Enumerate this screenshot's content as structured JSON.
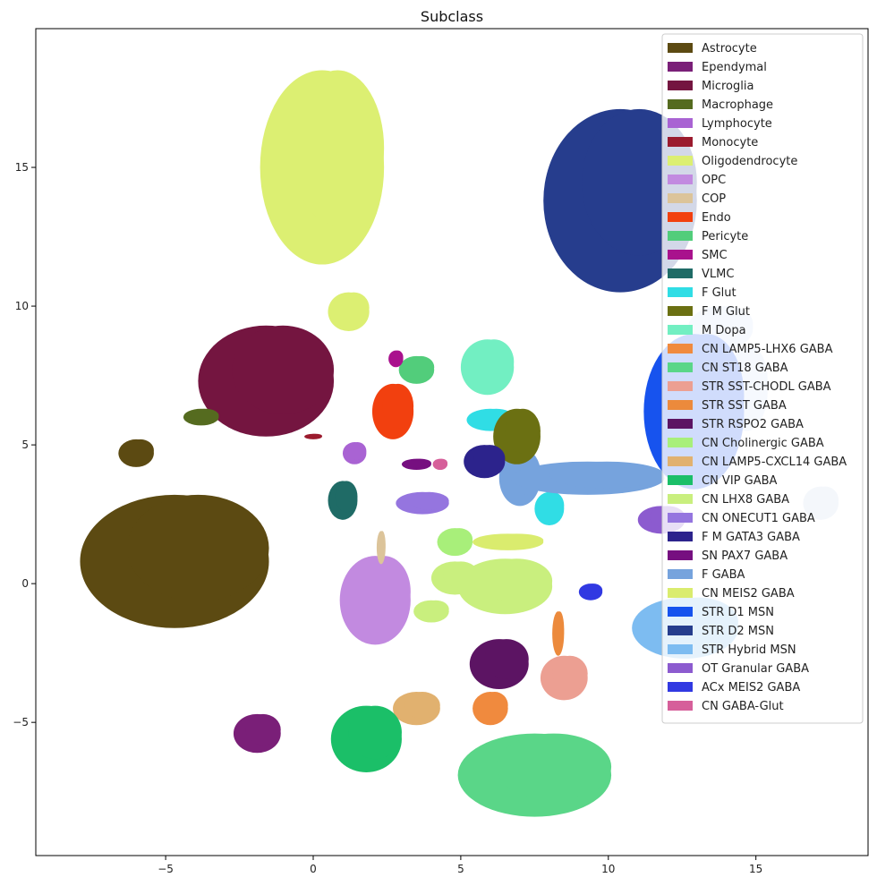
{
  "chart_data": {
    "type": "scatter",
    "title": "Subclass",
    "xlabel": "",
    "ylabel": "",
    "xlim": [
      -9.4,
      18.8
    ],
    "ylim": [
      -9.8,
      20.0
    ],
    "xticks": [
      -5,
      0,
      5,
      10,
      15
    ],
    "yticks": [
      -5,
      0,
      5,
      10,
      15
    ],
    "grid": false,
    "legend_position": "top-right",
    "series": [
      {
        "name": "Astrocyte",
        "color": "#5c4a12",
        "cluster": {
          "x": -4.7,
          "y": 0.8,
          "rx": 3.2,
          "ry": 2.4
        }
      },
      {
        "name": "Ependymal",
        "color": "#7a1f78",
        "cluster": {
          "x": -1.9,
          "y": -5.4,
          "rx": 0.8,
          "ry": 0.7
        }
      },
      {
        "name": "Microglia",
        "color": "#741540",
        "cluster": {
          "x": -1.6,
          "y": 7.3,
          "rx": 2.3,
          "ry": 2.0
        }
      },
      {
        "name": "Macrophage",
        "color": "#556b1f",
        "cluster": {
          "x": -3.8,
          "y": 6.0,
          "rx": 0.6,
          "ry": 0.3
        }
      },
      {
        "name": "Lymphocyte",
        "color": "#a963d3",
        "cluster": {
          "x": 1.4,
          "y": 4.7,
          "rx": 0.4,
          "ry": 0.4
        }
      },
      {
        "name": "Monocyte",
        "color": "#9b1b2e",
        "cluster": {
          "x": 0.0,
          "y": 5.3,
          "rx": 0.3,
          "ry": 0.1
        }
      },
      {
        "name": "Oligodendrocyte",
        "color": "#dcef72",
        "cluster": {
          "x": 0.3,
          "y": 15.0,
          "rx": 2.1,
          "ry": 3.5
        }
      },
      {
        "name": "OPC",
        "color": "#c28ae0",
        "cluster": {
          "x": 2.1,
          "y": -0.6,
          "rx": 1.2,
          "ry": 1.6
        }
      },
      {
        "name": "COP",
        "color": "#dcc49a",
        "cluster": {
          "x": 2.3,
          "y": 1.3,
          "rx": 0.15,
          "ry": 0.6
        }
      },
      {
        "name": "Endo",
        "color": "#f2400f",
        "cluster": {
          "x": 2.7,
          "y": 6.2,
          "rx": 0.7,
          "ry": 1.0
        }
      },
      {
        "name": "Pericyte",
        "color": "#52cd7b",
        "cluster": {
          "x": 3.5,
          "y": 7.7,
          "rx": 0.6,
          "ry": 0.5
        }
      },
      {
        "name": "SMC",
        "color": "#a9128d",
        "cluster": {
          "x": 2.8,
          "y": 8.1,
          "rx": 0.25,
          "ry": 0.3
        }
      },
      {
        "name": "VLMC",
        "color": "#1f6b66",
        "cluster": {
          "x": 1.0,
          "y": 3.0,
          "rx": 0.5,
          "ry": 0.7
        }
      },
      {
        "name": "F Glut",
        "color": "#30dde5",
        "cluster": {
          "x": 6.0,
          "y": 5.9,
          "rx": 0.8,
          "ry": 0.4
        }
      },
      {
        "name": "F M Glut",
        "color": "#6b7012",
        "cluster": {
          "x": 6.9,
          "y": 5.3,
          "rx": 0.8,
          "ry": 1.0
        }
      },
      {
        "name": "M Dopa",
        "color": "#72efc2",
        "cluster": {
          "x": 5.9,
          "y": 7.8,
          "rx": 0.9,
          "ry": 1.0
        }
      },
      {
        "name": "CN LAMP5-LHX6 GABA",
        "color": "#f08a3e",
        "cluster": {
          "x": 6.0,
          "y": -4.5,
          "rx": 0.6,
          "ry": 0.6
        }
      },
      {
        "name": "CN ST18 GABA",
        "color": "#5ad688",
        "cluster": {
          "x": 7.5,
          "y": -6.9,
          "rx": 2.6,
          "ry": 1.5
        }
      },
      {
        "name": "STR SST-CHODL GABA",
        "color": "#ec9f92",
        "cluster": {
          "x": 8.5,
          "y": -3.4,
          "rx": 0.8,
          "ry": 0.8
        }
      },
      {
        "name": "STR SST GABA",
        "color": "#ec8a3c",
        "cluster": {
          "x": 8.3,
          "y": -1.8,
          "rx": 0.2,
          "ry": 0.8
        }
      },
      {
        "name": "STR RSPO2 GABA",
        "color": "#5c1463",
        "cluster": {
          "x": 6.3,
          "y": -2.9,
          "rx": 1.0,
          "ry": 0.9
        }
      },
      {
        "name": "CN Cholinergic GABA",
        "color": "#a8ef7a",
        "cluster": {
          "x": 4.8,
          "y": 1.5,
          "rx": 0.6,
          "ry": 0.5
        }
      },
      {
        "name": "CN LAMP5-CXCL14 GABA",
        "color": "#e1b16f",
        "cluster": {
          "x": 3.5,
          "y": -4.5,
          "rx": 0.8,
          "ry": 0.6
        }
      },
      {
        "name": "CN VIP GABA",
        "color": "#1bbf68",
        "cluster": {
          "x": 1.8,
          "y": -5.6,
          "rx": 1.2,
          "ry": 1.2
        }
      },
      {
        "name": "CN LHX8 GABA",
        "color": "#c9ef7e",
        "cluster": {
          "x": 6.5,
          "y": -0.1,
          "rx": 1.6,
          "ry": 1.0
        }
      },
      {
        "name": "CN ONECUT1 GABA",
        "color": "#9575df",
        "cluster": {
          "x": 3.7,
          "y": 2.9,
          "rx": 0.9,
          "ry": 0.4
        }
      },
      {
        "name": "F M GATA3 GABA",
        "color": "#2c238c",
        "cluster": {
          "x": 5.8,
          "y": 4.4,
          "rx": 0.7,
          "ry": 0.6
        }
      },
      {
        "name": "SN PAX7 GABA",
        "color": "#760f80",
        "cluster": {
          "x": 3.5,
          "y": 4.3,
          "rx": 0.5,
          "ry": 0.2
        }
      },
      {
        "name": "F GABA",
        "color": "#76a3dd",
        "cluster": {
          "x": 9.3,
          "y": 3.8,
          "rx": 2.6,
          "ry": 0.6
        }
      },
      {
        "name": "CN MEIS2 GABA",
        "color": "#daec6e",
        "cluster": {
          "x": 6.6,
          "y": 1.5,
          "rx": 1.2,
          "ry": 0.3
        }
      },
      {
        "name": "STR D1 MSN",
        "color": "#1753ee",
        "cluster": {
          "x": 12.9,
          "y": 6.2,
          "rx": 1.7,
          "ry": 2.8
        }
      },
      {
        "name": "STR D2 MSN",
        "color": "#263d8d",
        "cluster": {
          "x": 10.4,
          "y": 13.8,
          "rx": 2.6,
          "ry": 3.3
        }
      },
      {
        "name": "STR Hybrid MSN",
        "color": "#7dbcf1",
        "cluster": {
          "x": 12.6,
          "y": -1.6,
          "rx": 1.8,
          "ry": 1.1
        }
      },
      {
        "name": "OT Granular GABA",
        "color": "#8c5bcf",
        "cluster": {
          "x": 11.8,
          "y": 2.3,
          "rx": 0.8,
          "ry": 0.5
        }
      },
      {
        "name": "ACx MEIS2 GABA",
        "color": "#3139e2",
        "cluster": {
          "x": 9.4,
          "y": -0.3,
          "rx": 0.4,
          "ry": 0.3
        }
      },
      {
        "name": "CN GABA-Glut",
        "color": "#d65f9a",
        "cluster": {
          "x": 4.3,
          "y": 4.3,
          "rx": 0.25,
          "ry": 0.2
        }
      }
    ],
    "extra_clusters": [
      {
        "x": 17.2,
        "y": 2.9,
        "rx": 0.6,
        "ry": 0.6,
        "color": "#c8d4ea"
      },
      {
        "x": 13.8,
        "y": 9.2,
        "rx": 1.1,
        "ry": 0.8,
        "color": "#cfe0fb"
      },
      {
        "x": 14.7,
        "y": 7.0,
        "rx": 0.7,
        "ry": 1.5,
        "color": "#cfe0fb"
      },
      {
        "x": 7.0,
        "y": 3.8,
        "rx": 0.7,
        "ry": 1.0,
        "color": "#76a3dd"
      },
      {
        "x": 8.0,
        "y": 2.7,
        "rx": 0.5,
        "ry": 0.6,
        "color": "#30dde5"
      },
      {
        "x": 7.4,
        "y": -7.0,
        "rx": 0.7,
        "ry": 0.7,
        "color": "#ffffff"
      },
      {
        "x": 1.2,
        "y": 9.8,
        "rx": 0.7,
        "ry": 0.7,
        "color": "#dcef72"
      },
      {
        "x": -6.0,
        "y": 4.7,
        "rx": 0.6,
        "ry": 0.5,
        "color": "#5c4a12"
      },
      {
        "x": 4.8,
        "y": 0.2,
        "rx": 0.8,
        "ry": 0.6,
        "color": "#c9ef7e"
      },
      {
        "x": 4.0,
        "y": -1.0,
        "rx": 0.6,
        "ry": 0.4,
        "color": "#c9ef7e"
      }
    ]
  }
}
